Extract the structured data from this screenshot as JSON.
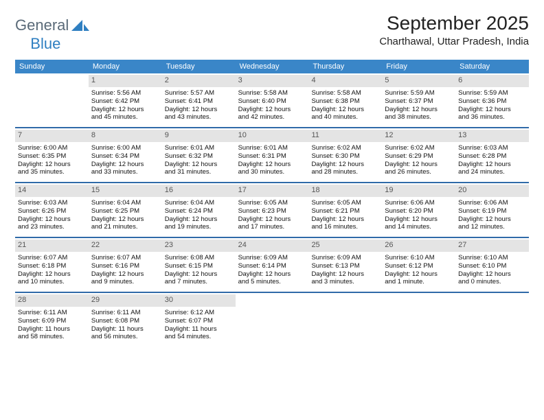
{
  "brand": {
    "name1": "General",
    "name2": "Blue"
  },
  "title": "September 2025",
  "location": "Charthawal, Uttar Pradesh, India",
  "colors": {
    "header_bg": "#3a86c8",
    "header_text": "#ffffff",
    "week_border": "#2f6aa8",
    "daynum_bg": "#e4e4e4",
    "logo_gray": "#5a6a78",
    "logo_blue": "#2f7fc1"
  },
  "dow": [
    "Sunday",
    "Monday",
    "Tuesday",
    "Wednesday",
    "Thursday",
    "Friday",
    "Saturday"
  ],
  "weeks": [
    [
      {
        "empty": true
      },
      {
        "num": "1",
        "sunrise": "Sunrise: 5:56 AM",
        "sunset": "Sunset: 6:42 PM",
        "day1": "Daylight: 12 hours",
        "day2": "and 45 minutes."
      },
      {
        "num": "2",
        "sunrise": "Sunrise: 5:57 AM",
        "sunset": "Sunset: 6:41 PM",
        "day1": "Daylight: 12 hours",
        "day2": "and 43 minutes."
      },
      {
        "num": "3",
        "sunrise": "Sunrise: 5:58 AM",
        "sunset": "Sunset: 6:40 PM",
        "day1": "Daylight: 12 hours",
        "day2": "and 42 minutes."
      },
      {
        "num": "4",
        "sunrise": "Sunrise: 5:58 AM",
        "sunset": "Sunset: 6:38 PM",
        "day1": "Daylight: 12 hours",
        "day2": "and 40 minutes."
      },
      {
        "num": "5",
        "sunrise": "Sunrise: 5:59 AM",
        "sunset": "Sunset: 6:37 PM",
        "day1": "Daylight: 12 hours",
        "day2": "and 38 minutes."
      },
      {
        "num": "6",
        "sunrise": "Sunrise: 5:59 AM",
        "sunset": "Sunset: 6:36 PM",
        "day1": "Daylight: 12 hours",
        "day2": "and 36 minutes."
      }
    ],
    [
      {
        "num": "7",
        "sunrise": "Sunrise: 6:00 AM",
        "sunset": "Sunset: 6:35 PM",
        "day1": "Daylight: 12 hours",
        "day2": "and 35 minutes."
      },
      {
        "num": "8",
        "sunrise": "Sunrise: 6:00 AM",
        "sunset": "Sunset: 6:34 PM",
        "day1": "Daylight: 12 hours",
        "day2": "and 33 minutes."
      },
      {
        "num": "9",
        "sunrise": "Sunrise: 6:01 AM",
        "sunset": "Sunset: 6:32 PM",
        "day1": "Daylight: 12 hours",
        "day2": "and 31 minutes."
      },
      {
        "num": "10",
        "sunrise": "Sunrise: 6:01 AM",
        "sunset": "Sunset: 6:31 PM",
        "day1": "Daylight: 12 hours",
        "day2": "and 30 minutes."
      },
      {
        "num": "11",
        "sunrise": "Sunrise: 6:02 AM",
        "sunset": "Sunset: 6:30 PM",
        "day1": "Daylight: 12 hours",
        "day2": "and 28 minutes."
      },
      {
        "num": "12",
        "sunrise": "Sunrise: 6:02 AM",
        "sunset": "Sunset: 6:29 PM",
        "day1": "Daylight: 12 hours",
        "day2": "and 26 minutes."
      },
      {
        "num": "13",
        "sunrise": "Sunrise: 6:03 AM",
        "sunset": "Sunset: 6:28 PM",
        "day1": "Daylight: 12 hours",
        "day2": "and 24 minutes."
      }
    ],
    [
      {
        "num": "14",
        "sunrise": "Sunrise: 6:03 AM",
        "sunset": "Sunset: 6:26 PM",
        "day1": "Daylight: 12 hours",
        "day2": "and 23 minutes."
      },
      {
        "num": "15",
        "sunrise": "Sunrise: 6:04 AM",
        "sunset": "Sunset: 6:25 PM",
        "day1": "Daylight: 12 hours",
        "day2": "and 21 minutes."
      },
      {
        "num": "16",
        "sunrise": "Sunrise: 6:04 AM",
        "sunset": "Sunset: 6:24 PM",
        "day1": "Daylight: 12 hours",
        "day2": "and 19 minutes."
      },
      {
        "num": "17",
        "sunrise": "Sunrise: 6:05 AM",
        "sunset": "Sunset: 6:23 PM",
        "day1": "Daylight: 12 hours",
        "day2": "and 17 minutes."
      },
      {
        "num": "18",
        "sunrise": "Sunrise: 6:05 AM",
        "sunset": "Sunset: 6:21 PM",
        "day1": "Daylight: 12 hours",
        "day2": "and 16 minutes."
      },
      {
        "num": "19",
        "sunrise": "Sunrise: 6:06 AM",
        "sunset": "Sunset: 6:20 PM",
        "day1": "Daylight: 12 hours",
        "day2": "and 14 minutes."
      },
      {
        "num": "20",
        "sunrise": "Sunrise: 6:06 AM",
        "sunset": "Sunset: 6:19 PM",
        "day1": "Daylight: 12 hours",
        "day2": "and 12 minutes."
      }
    ],
    [
      {
        "num": "21",
        "sunrise": "Sunrise: 6:07 AM",
        "sunset": "Sunset: 6:18 PM",
        "day1": "Daylight: 12 hours",
        "day2": "and 10 minutes."
      },
      {
        "num": "22",
        "sunrise": "Sunrise: 6:07 AM",
        "sunset": "Sunset: 6:16 PM",
        "day1": "Daylight: 12 hours",
        "day2": "and 9 minutes."
      },
      {
        "num": "23",
        "sunrise": "Sunrise: 6:08 AM",
        "sunset": "Sunset: 6:15 PM",
        "day1": "Daylight: 12 hours",
        "day2": "and 7 minutes."
      },
      {
        "num": "24",
        "sunrise": "Sunrise: 6:09 AM",
        "sunset": "Sunset: 6:14 PM",
        "day1": "Daylight: 12 hours",
        "day2": "and 5 minutes."
      },
      {
        "num": "25",
        "sunrise": "Sunrise: 6:09 AM",
        "sunset": "Sunset: 6:13 PM",
        "day1": "Daylight: 12 hours",
        "day2": "and 3 minutes."
      },
      {
        "num": "26",
        "sunrise": "Sunrise: 6:10 AM",
        "sunset": "Sunset: 6:12 PM",
        "day1": "Daylight: 12 hours",
        "day2": "and 1 minute."
      },
      {
        "num": "27",
        "sunrise": "Sunrise: 6:10 AM",
        "sunset": "Sunset: 6:10 PM",
        "day1": "Daylight: 12 hours",
        "day2": "and 0 minutes."
      }
    ],
    [
      {
        "num": "28",
        "sunrise": "Sunrise: 6:11 AM",
        "sunset": "Sunset: 6:09 PM",
        "day1": "Daylight: 11 hours",
        "day2": "and 58 minutes."
      },
      {
        "num": "29",
        "sunrise": "Sunrise: 6:11 AM",
        "sunset": "Sunset: 6:08 PM",
        "day1": "Daylight: 11 hours",
        "day2": "and 56 minutes."
      },
      {
        "num": "30",
        "sunrise": "Sunrise: 6:12 AM",
        "sunset": "Sunset: 6:07 PM",
        "day1": "Daylight: 11 hours",
        "day2": "and 54 minutes."
      },
      {
        "empty": true
      },
      {
        "empty": true
      },
      {
        "empty": true
      },
      {
        "empty": true
      }
    ]
  ]
}
